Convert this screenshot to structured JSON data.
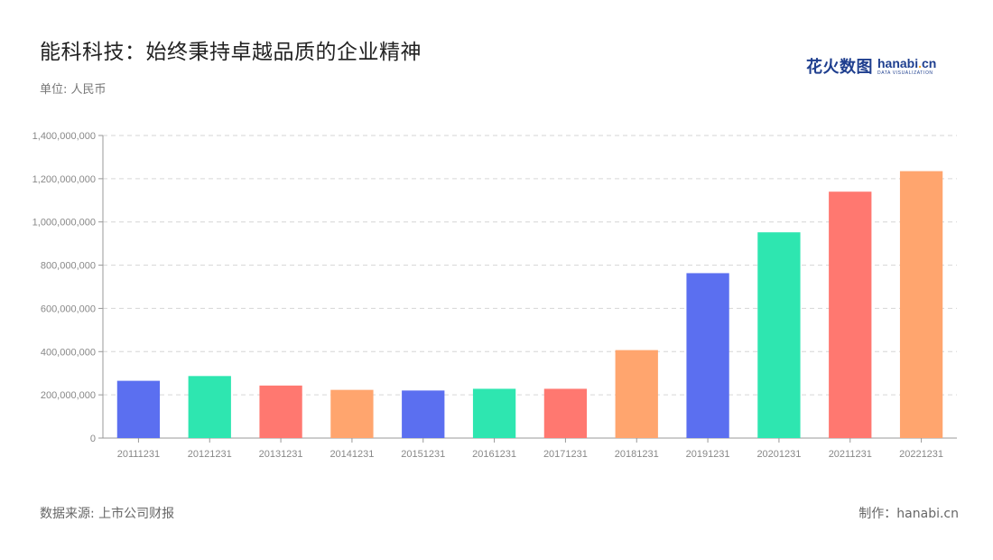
{
  "header": {
    "title": "能科科技：始终秉持卓越品质的企业精神",
    "subtitle": "单位: 人民币"
  },
  "logo": {
    "cn": "花火数图",
    "en_main_a": "hanabi",
    "en_main_dot": ".",
    "en_main_b": "cn",
    "en_sub": "DATA VISUALIZATION"
  },
  "footer": {
    "source": "数据来源: 上市公司财报",
    "credit": "制作：hanabi.cn"
  },
  "chart_data": {
    "type": "bar",
    "categories": [
      "20111231",
      "20121231",
      "20131231",
      "20141231",
      "20151231",
      "20161231",
      "20171231",
      "20181231",
      "20191231",
      "20201231",
      "20211231",
      "20221231"
    ],
    "values": [
      265000000,
      287000000,
      243000000,
      223000000,
      220000000,
      228000000,
      228000000,
      407000000,
      763000000,
      952000000,
      1140000000,
      1235000000
    ],
    "ylim": [
      0,
      1400000000
    ],
    "yticks": [
      0,
      200000000,
      400000000,
      600000000,
      800000000,
      1000000000,
      1200000000,
      1400000000
    ],
    "ytick_labels": [
      "0",
      "200,000,000",
      "400,000,000",
      "600,000,000",
      "800,000,000",
      "1,000,000,000",
      "1,200,000,000",
      "1,400,000,000"
    ],
    "bar_colors": [
      "#5b6ff0",
      "#2ee6b0",
      "#ff7870",
      "#ffa56e"
    ],
    "grid": true,
    "legend": "none"
  }
}
